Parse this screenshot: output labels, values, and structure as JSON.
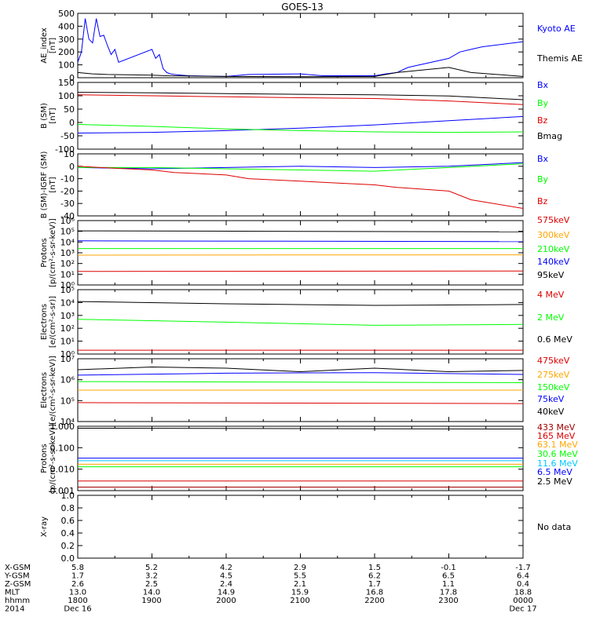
{
  "title": "GOES-13",
  "colors": {
    "black": "#000000",
    "blue": "#0000ff",
    "red": "#dd0000",
    "green": "#00ff00",
    "orange": "#ffa500",
    "dkred": "#a00000",
    "yellow": "#e6e600",
    "cyan": "#00c8ff",
    "purple": "#8800aa"
  },
  "time_axis": {
    "rows": [
      {
        "label": "X-GSM",
        "values": [
          "5.8",
          "5.2",
          "4.2",
          "2.9",
          "1.5",
          "-0.1",
          "-1.7"
        ]
      },
      {
        "label": "Y-GSM",
        "values": [
          "1.7",
          "3.2",
          "4.5",
          "5.5",
          "6.2",
          "6.5",
          "6.4"
        ]
      },
      {
        "label": "Z-GSM",
        "values": [
          "2.6",
          "2.5",
          "2.4",
          "2.1",
          "1.7",
          "1.1",
          "0.4"
        ]
      },
      {
        "label": "MLT",
        "values": [
          "13.0",
          "14.0",
          "14.9",
          "15.9",
          "16.8",
          "17.8",
          "18.8"
        ]
      },
      {
        "label": "hhmm",
        "values": [
          "1800",
          "1900",
          "2000",
          "2100",
          "2200",
          "2300",
          "0000"
        ]
      },
      {
        "label": "2014",
        "values": [
          "Dec 16",
          "",
          "",
          "",
          "",
          "",
          "Dec 17"
        ]
      }
    ]
  },
  "chart_data": [
    {
      "type": "line",
      "ylabel": "AE_index\n[nT]",
      "ylim": [
        0,
        500
      ],
      "yticks": [
        "0",
        "100",
        "200",
        "300",
        "400",
        "500"
      ],
      "xlim": [
        1800,
        2400
      ],
      "series": [
        {
          "name": "Kyoto AE",
          "color": "#0000ff",
          "x": [
            1800,
            1805,
            1810,
            1815,
            1820,
            1825,
            1830,
            1835,
            1840,
            1845,
            1850,
            1855,
            1900,
            1905,
            1910,
            1915,
            1920,
            1925,
            1930,
            1940,
            1950,
            2000,
            2030,
            2100,
            2130,
            2200,
            2215,
            2230,
            2245,
            2300,
            2315,
            2330,
            2345,
            2400
          ],
          "y": [
            120,
            200,
            460,
            300,
            270,
            460,
            320,
            330,
            250,
            180,
            220,
            120,
            220,
            150,
            180,
            70,
            40,
            30,
            25,
            20,
            15,
            10,
            25,
            30,
            15,
            15,
            30,
            40,
            80,
            150,
            200,
            220,
            240,
            280
          ]
        },
        {
          "name": "Themis AE",
          "color": "#000000",
          "x": [
            1800,
            1820,
            1840,
            1900,
            1920,
            2000,
            2100,
            2200,
            2230,
            2300,
            2330,
            2400
          ],
          "y": [
            40,
            30,
            25,
            20,
            15,
            10,
            8,
            10,
            40,
            80,
            40,
            10
          ]
        }
      ]
    },
    {
      "type": "line",
      "ylabel": "B (SM)\n[nT]",
      "ylim": [
        -120,
        150
      ],
      "yticks": [
        "-100",
        "-50",
        "0",
        "50",
        "100",
        "150"
      ],
      "xlim": [
        1800,
        2400
      ],
      "series": [
        {
          "name": "Bx",
          "color": "#0000ff",
          "x": [
            1800,
            1900,
            2000,
            2100,
            2200,
            2300,
            2400
          ],
          "y": [
            -55,
            -52,
            -45,
            -35,
            -22,
            -5,
            12
          ]
        },
        {
          "name": "By",
          "color": "#00ff00",
          "x": [
            1800,
            1900,
            2000,
            2100,
            2200,
            2300,
            2400
          ],
          "y": [
            -20,
            -28,
            -38,
            -45,
            -50,
            -52,
            -50
          ]
        },
        {
          "name": "Bz",
          "color": "#dd0000",
          "x": [
            1800,
            1900,
            2000,
            2100,
            2200,
            2300,
            2400
          ],
          "y": [
            100,
            96,
            92,
            88,
            85,
            75,
            60
          ]
        },
        {
          "name": "Bmag",
          "color": "#000000",
          "x": [
            1800,
            1900,
            2000,
            2100,
            2200,
            2300,
            2400
          ],
          "y": [
            110,
            108,
            105,
            102,
            100,
            95,
            80
          ]
        }
      ]
    },
    {
      "type": "line",
      "ylabel": "B (SM)-IGRF (SM)\n[nT]",
      "ylim": [
        -40,
        10
      ],
      "yticks": [
        "-40",
        "-30",
        "-20",
        "-10",
        "0",
        "10"
      ],
      "xlim": [
        1800,
        2400
      ],
      "series": [
        {
          "name": "Bx",
          "color": "#0000ff",
          "x": [
            1800,
            1900,
            2000,
            2100,
            2200,
            2300,
            2400
          ],
          "y": [
            -1,
            -2,
            -1,
            0,
            -1,
            0,
            3
          ]
        },
        {
          "name": "By",
          "color": "#00ff00",
          "x": [
            1800,
            1900,
            2000,
            2100,
            2200,
            2300,
            2400
          ],
          "y": [
            -1,
            -1,
            -2,
            -3,
            -4,
            -1,
            2
          ]
        },
        {
          "name": "Bz",
          "color": "#dd0000",
          "x": [
            1800,
            1830,
            1900,
            1930,
            2000,
            2030,
            2100,
            2130,
            2200,
            2230,
            2300,
            2330,
            2400
          ],
          "y": [
            0,
            -1,
            -3,
            -5,
            -7,
            -10,
            -12,
            -13,
            -15,
            -17,
            -20,
            -27,
            -34
          ]
        }
      ]
    },
    {
      "type": "line",
      "ylabel": "Protons\n[p/(cm²-s-sr-keV)]",
      "yscale": "log",
      "ylim": [
        1,
        1000000
      ],
      "yticks": [
        "10⁰",
        "10¹",
        "10²",
        "10³",
        "10⁴",
        "10⁵",
        "10⁶"
      ],
      "xlim": [
        1800,
        2400
      ],
      "series": [
        {
          "name": "575keV",
          "color": "#dd0000",
          "x": [
            1800,
            2400
          ],
          "y": [
            18,
            20
          ]
        },
        {
          "name": "300keV",
          "color": "#ffa500",
          "x": [
            1800,
            2400
          ],
          "y": [
            600,
            650
          ]
        },
        {
          "name": "210keV",
          "color": "#00ff00",
          "x": [
            1800,
            2400
          ],
          "y": [
            2500,
            2500
          ]
        },
        {
          "name": "140keV",
          "color": "#0000ff",
          "x": [
            1800,
            2400
          ],
          "y": [
            13000,
            11000
          ]
        },
        {
          "name": "95keV",
          "color": "#000000",
          "x": [
            1800,
            2400
          ],
          "y": [
            110000,
            90000
          ]
        }
      ]
    },
    {
      "type": "line",
      "ylabel": "Electrons\n[e/(cm²-s-sr)]",
      "yscale": "log",
      "ylim": [
        1,
        100000
      ],
      "yticks": [
        "10⁰",
        "10¹",
        "10²",
        "10³",
        "10⁴",
        "10⁵"
      ],
      "xlim": [
        1800,
        2400
      ],
      "series": [
        {
          "name": "4 MeV",
          "color": "#dd0000",
          "x": [
            1800,
            2400
          ],
          "y": [
            2.0,
            2.0
          ]
        },
        {
          "name": "2 MeV",
          "color": "#00ff00",
          "x": [
            1800,
            2000,
            2200,
            2400
          ],
          "y": [
            500,
            300,
            170,
            200
          ]
        },
        {
          "name": "0.6 MeV",
          "color": "#000000",
          "x": [
            1800,
            2000,
            2200,
            2400
          ],
          "y": [
            12000,
            8000,
            6000,
            7000
          ]
        }
      ]
    },
    {
      "type": "line",
      "ylabel": "Electrons\n[e/(cm²-s-sr-keV)]",
      "yscale": "log",
      "ylim": [
        1000,
        10000000
      ],
      "yticks": [
        "10⁴",
        "10⁵",
        "10⁶",
        "10⁷"
      ],
      "xlim": [
        1800,
        2400
      ],
      "series": [
        {
          "name": "475keV",
          "color": "#dd0000",
          "x": [
            1800,
            2400
          ],
          "y": [
            16000,
            14000
          ]
        },
        {
          "name": "275keV",
          "color": "#ffa500",
          "x": [
            1800,
            2400
          ],
          "y": [
            100000,
            100000
          ]
        },
        {
          "name": "150keV",
          "color": "#00ff00",
          "x": [
            1800,
            2400
          ],
          "y": [
            350000,
            300000
          ]
        },
        {
          "name": "75keV",
          "color": "#0000ff",
          "x": [
            1800,
            2000,
            2200,
            2400
          ],
          "y": [
            900000,
            1200000,
            1300000,
            1000000
          ]
        },
        {
          "name": "40keV",
          "color": "#000000",
          "x": [
            1800,
            1900,
            2000,
            2100,
            2200,
            2300,
            2400
          ],
          "y": [
            2000000,
            3000000,
            2500000,
            1500000,
            2500000,
            1500000,
            1800000
          ]
        }
      ]
    },
    {
      "type": "line",
      "ylabel": "Protons\n[p/(cm²-s-sr-keV)]",
      "yscale": "log",
      "ylim": [
        0.001,
        1.5
      ],
      "yticks": [
        "0.001",
        "0.010",
        "0.100",
        "1.000"
      ],
      "xlim": [
        1800,
        2400
      ],
      "series": [
        {
          "name": "433 MeV",
          "color": "#a00000",
          "x": [
            1800,
            2400
          ],
          "y": [
            0.0015,
            0.0015
          ]
        },
        {
          "name": "165 MeV",
          "color": "#dd0000",
          "x": [
            1800,
            2400
          ],
          "y": [
            0.003,
            0.003
          ]
        },
        {
          "name": "63.1 MeV",
          "color": "#ffa500",
          "x": [
            1800,
            2400
          ],
          "y": [
            0.02,
            0.02
          ]
        },
        {
          "name": "30.6 MeV",
          "color": "#00ff00",
          "x": [
            1800,
            2400
          ],
          "y": [
            0.015,
            0.015
          ]
        },
        {
          "name": "11.6 MeV",
          "color": "#00c8ff",
          "x": [
            1800,
            2400
          ],
          "y": [
            0.03,
            0.03
          ]
        },
        {
          "name": "6.5 MeV",
          "color": "#0000ff",
          "x": [
            1800,
            2400
          ],
          "y": [
            0.04,
            0.04
          ]
        },
        {
          "name": "2.5 MeV",
          "color": "#000000",
          "x": [
            1800,
            2400
          ],
          "y": [
            1.2,
            1.1
          ]
        }
      ]
    },
    {
      "type": "line",
      "ylabel": "X-ray",
      "ylim": [
        0,
        1.0
      ],
      "yticks": [
        "0.0",
        "0.2",
        "0.4",
        "0.6",
        "0.8",
        "1.0"
      ],
      "xlim": [
        1800,
        2400
      ],
      "series": [],
      "legend": [
        "No data"
      ]
    }
  ]
}
